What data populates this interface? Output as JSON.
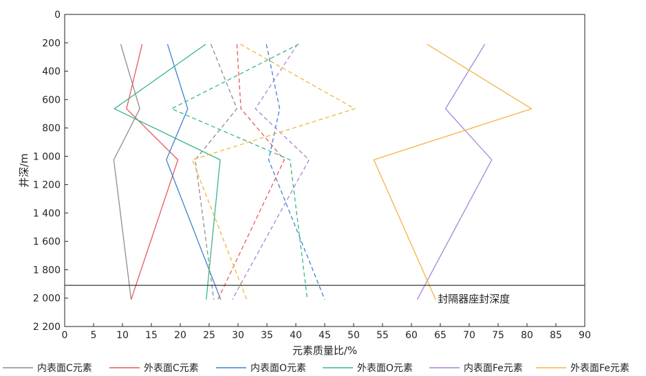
{
  "chart_data": {
    "type": "line",
    "title": "",
    "xlabel": "元素质量比/%",
    "ylabel": "井深/m",
    "xlim": [
      0,
      90
    ],
    "ylim": [
      0,
      2200
    ],
    "y_inverted": true,
    "grid": false,
    "legend_position": "bottom",
    "x_ticks": [
      0,
      5,
      10,
      15,
      20,
      25,
      30,
      35,
      40,
      45,
      50,
      55,
      60,
      65,
      70,
      75,
      80,
      85,
      90
    ],
    "x_tick_labels": [
      "0",
      "5",
      "10",
      "15",
      "20",
      "25",
      "30",
      "35",
      "40",
      "45",
      "50",
      "55",
      "60",
      "65",
      "70",
      "75",
      "80",
      "85",
      "90"
    ],
    "y_ticks": [
      0,
      200,
      400,
      600,
      800,
      1000,
      1200,
      1400,
      1600,
      1800,
      2000,
      2200
    ],
    "y_tick_labels": [
      "0",
      "200",
      "400",
      "600",
      "800",
      "1 000",
      "1 200",
      "1 400",
      "1 600",
      "1 800",
      "2 000",
      "2 200"
    ],
    "annotation": {
      "label": "封隔器座封深度",
      "depth": 1910
    },
    "series": [
      {
        "name": "内表面C元素",
        "color": "#8c8c8c",
        "style": "solid",
        "x": [
          9.7,
          13.0,
          8.5,
          11.5
        ],
        "y": [
          210,
          665,
          1025,
          2010
        ]
      },
      {
        "name": "外表面C元素",
        "color": "#e8575a",
        "style": "solid",
        "x": [
          13.4,
          10.7,
          19.6,
          11.5
        ],
        "y": [
          210,
          665,
          1025,
          2010
        ]
      },
      {
        "name": "内表面O元素",
        "color": "#3d7fd0",
        "style": "solid",
        "x": [
          17.8,
          21.3,
          17.6,
          27.0
        ],
        "y": [
          210,
          665,
          1025,
          2010
        ]
      },
      {
        "name": "外表面O元素",
        "color": "#35b68a",
        "style": "solid",
        "x": [
          24.4,
          8.6,
          26.9,
          24.5
        ],
        "y": [
          210,
          665,
          1025,
          2010
        ]
      },
      {
        "name": "内表面Fe元素",
        "color": "#a584d4",
        "style": "solid",
        "x": [
          72.7,
          65.9,
          73.9,
          61.0
        ],
        "y": [
          210,
          665,
          1025,
          2010
        ]
      },
      {
        "name": "外表面Fe元素",
        "color": "#f0b53d",
        "style": "solid",
        "x": [
          62.7,
          80.8,
          53.5,
          64.2
        ],
        "y": [
          210,
          665,
          1025,
          2010
        ]
      },
      {
        "name": "",
        "color": "#8c8c8c",
        "style": "dashed",
        "x": [
          25.3,
          29.8,
          22.6,
          25.8
        ],
        "y": [
          210,
          665,
          1025,
          2010
        ]
      },
      {
        "name": "",
        "color": "#e8575a",
        "style": "dashed",
        "x": [
          29.8,
          30.5,
          38.0,
          26.5
        ],
        "y": [
          210,
          665,
          1025,
          2010
        ]
      },
      {
        "name": "",
        "color": "#3d7fd0",
        "style": "dashed",
        "x": [
          34.9,
          37.2,
          35.3,
          45.0
        ],
        "y": [
          210,
          665,
          1025,
          2010
        ]
      },
      {
        "name": "",
        "color": "#35b68a",
        "style": "dashed",
        "x": [
          40.5,
          18.5,
          39.0,
          42.0
        ],
        "y": [
          210,
          665,
          1025,
          2010
        ]
      },
      {
        "name": "",
        "color": "#a584d4",
        "style": "dashed",
        "x": [
          40.3,
          33.0,
          42.3,
          29.0
        ],
        "y": [
          210,
          665,
          1025,
          2010
        ]
      },
      {
        "name": "",
        "color": "#f0b53d",
        "style": "dashed",
        "x": [
          30.4,
          50.2,
          22.1,
          31.5
        ],
        "y": [
          210,
          665,
          1025,
          2010
        ]
      }
    ]
  }
}
